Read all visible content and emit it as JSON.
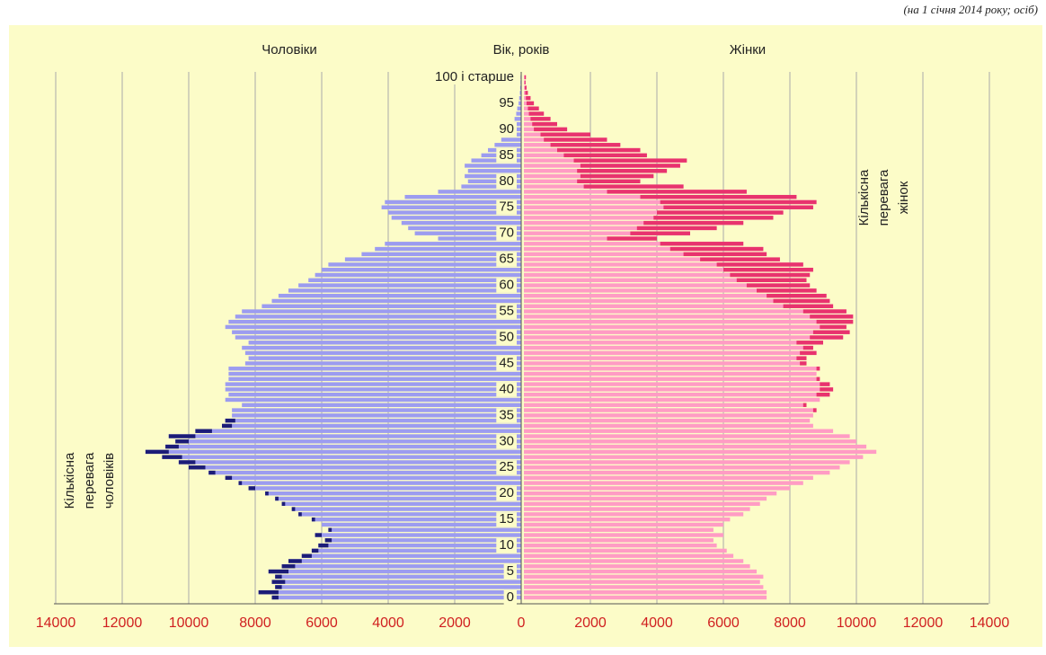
{
  "chart_data": {
    "type": "pyramid",
    "subtitle": "(на 1 січня 2014 року; осіб)",
    "left_label": "Чоловіки",
    "center_label": "Вік, років",
    "right_label": "Жінки",
    "annotations": [
      {
        "side": "left",
        "lines": [
          "Кількісна",
          "перевага",
          "чоловіків"
        ]
      },
      {
        "side": "right",
        "lines": [
          "Кількісна",
          "перевага",
          "жінок"
        ]
      }
    ],
    "categories": [
      "0",
      null,
      null,
      null,
      null,
      "5",
      null,
      null,
      null,
      null,
      "10",
      null,
      null,
      null,
      null,
      "15",
      null,
      null,
      null,
      null,
      "20",
      null,
      null,
      null,
      null,
      "25",
      null,
      null,
      null,
      null,
      "30",
      null,
      null,
      null,
      null,
      "35",
      null,
      null,
      null,
      null,
      "40",
      null,
      null,
      null,
      null,
      "45",
      null,
      null,
      null,
      null,
      "50",
      null,
      null,
      null,
      null,
      "55",
      null,
      null,
      null,
      null,
      "60",
      null,
      null,
      null,
      null,
      "65",
      null,
      null,
      null,
      null,
      "70",
      null,
      null,
      null,
      null,
      "75",
      null,
      null,
      null,
      null,
      "80",
      null,
      null,
      null,
      null,
      "85",
      null,
      null,
      null,
      null,
      "90",
      null,
      null,
      null,
      null,
      "95",
      null,
      null,
      null,
      null,
      "100 і старше"
    ],
    "series": [
      {
        "name": "Чоловіки",
        "color": "#9c9cf0",
        "excess_color": "#1c1c78",
        "values": [
          7500,
          7900,
          7400,
          7500,
          7400,
          7600,
          7200,
          7000,
          6600,
          6300,
          6100,
          5900,
          6200,
          5800,
          6000,
          6300,
          6700,
          6900,
          7200,
          7400,
          7700,
          8200,
          8500,
          8900,
          9400,
          10000,
          10300,
          10800,
          11300,
          10700,
          10400,
          10600,
          9800,
          9000,
          8900,
          8700,
          8700,
          8400,
          8900,
          8800,
          8900,
          8900,
          8800,
          8800,
          8800,
          8300,
          8200,
          8300,
          8400,
          8200,
          8600,
          8700,
          8900,
          8800,
          8600,
          8400,
          7800,
          7500,
          7300,
          7000,
          6700,
          6400,
          6200,
          6000,
          5800,
          5300,
          4800,
          4400,
          4100,
          2500,
          3200,
          3400,
          3600,
          3900,
          4000,
          4200,
          4100,
          3500,
          2500,
          1800,
          1600,
          1700,
          1600,
          1700,
          1500,
          1200,
          1000,
          800,
          600,
          500,
          300,
          250,
          200,
          150,
          120,
          80,
          60,
          40,
          30,
          20,
          20
        ]
      },
      {
        "name": "Жінки",
        "color": "#ff9cc4",
        "excess_color": "#e8336e",
        "values": [
          7300,
          7300,
          7200,
          7100,
          7200,
          7000,
          6800,
          6600,
          6300,
          6100,
          5800,
          5700,
          6000,
          5700,
          6000,
          6200,
          6600,
          6800,
          7100,
          7300,
          7600,
          8000,
          8400,
          8700,
          9200,
          9500,
          9800,
          10200,
          10600,
          10300,
          10000,
          9800,
          9300,
          8700,
          8600,
          8700,
          8800,
          8500,
          8900,
          9200,
          9300,
          9200,
          8900,
          8800,
          8900,
          8500,
          8500,
          8800,
          8700,
          9000,
          9600,
          9800,
          9700,
          9900,
          9900,
          9700,
          9300,
          9200,
          9100,
          8800,
          8600,
          8500,
          8600,
          8700,
          8400,
          7700,
          7300,
          7200,
          6600,
          4000,
          5000,
          5800,
          6600,
          7500,
          7800,
          8700,
          8800,
          8200,
          6700,
          4800,
          3500,
          3900,
          4300,
          4700,
          4900,
          3700,
          3500,
          2900,
          2500,
          2000,
          1300,
          1000,
          800,
          600,
          450,
          300,
          200,
          120,
          80,
          50,
          60
        ]
      }
    ],
    "xlim": [
      0,
      14000
    ],
    "xticks_left": [
      0,
      2000,
      4000,
      6000,
      8000,
      10000,
      12000,
      14000
    ],
    "xticks_right": [
      2000,
      4000,
      6000,
      8000,
      10000,
      12000,
      14000
    ],
    "grid": true
  }
}
